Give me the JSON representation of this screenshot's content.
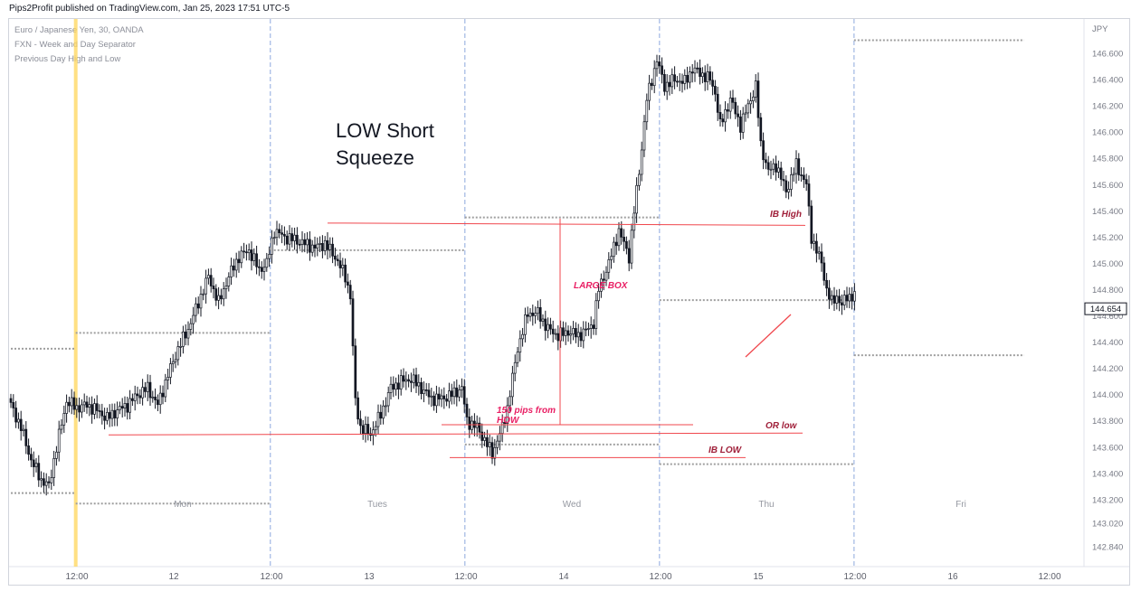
{
  "publisher": "Pips2Profit published on TradingView.com, Jan 25, 2023 17:51 UTC-5",
  "legend": [
    "Euro / Japanese Yen, 30, OANDA",
    "FXN - Week and Day Separator",
    "Previous Day High and Low"
  ],
  "colors": {
    "candle": "#131722",
    "separator": "#a8bde6",
    "prev_day_level": "#9e9e9e",
    "highlight": "#ffd65a",
    "annotation_line": "#f0474d",
    "annotation_text_dark": "#a0203a",
    "annotation_text_pink": "#e91e63",
    "axis_text": "#787b86"
  },
  "chart_data": {
    "type": "candlestick",
    "symbol": "Euro / Japanese Yen",
    "interval": "30",
    "source": "OANDA",
    "y_axis": {
      "unit_label": "JPY",
      "ticks": [
        "146.600",
        "146.400",
        "146.200",
        "146.000",
        "145.800",
        "145.600",
        "145.400",
        "145.200",
        "145.000",
        "144.800",
        "144.600",
        "144.400",
        "144.200",
        "144.000",
        "143.800",
        "143.600",
        "143.400",
        "143.200",
        "143.020",
        "142.840"
      ],
      "range": [
        142.7,
        146.85
      ],
      "last_price": "144.654"
    },
    "x_axis": {
      "ticks": [
        "12:00",
        "12",
        "12:00",
        "13",
        "12:00",
        "14",
        "12:00",
        "15",
        "12:00",
        "16",
        "12:00"
      ],
      "day_labels": [
        "Mon",
        "Tues",
        "Wed",
        "Thu",
        "Fri"
      ]
    },
    "candle_anchors": [
      [
        0,
        143.92
      ],
      [
        4,
        143.75
      ],
      [
        8,
        143.5
      ],
      [
        12,
        143.35
      ],
      [
        15,
        143.3
      ],
      [
        18,
        143.6
      ],
      [
        22,
        143.95
      ],
      [
        26,
        143.9
      ],
      [
        30,
        143.92
      ],
      [
        34,
        143.88
      ],
      [
        38,
        143.82
      ],
      [
        42,
        143.88
      ],
      [
        46,
        143.92
      ],
      [
        50,
        144.0
      ],
      [
        54,
        144.05
      ],
      [
        58,
        143.92
      ],
      [
        62,
        144.15
      ],
      [
        66,
        144.35
      ],
      [
        70,
        144.5
      ],
      [
        74,
        144.7
      ],
      [
        78,
        144.9
      ],
      [
        82,
        144.7
      ],
      [
        86,
        144.9
      ],
      [
        90,
        145.05
      ],
      [
        94,
        145.1
      ],
      [
        98,
        144.95
      ],
      [
        101,
        145.0
      ],
      [
        104,
        145.25
      ],
      [
        108,
        145.2
      ],
      [
        112,
        145.18
      ],
      [
        116,
        145.15
      ],
      [
        120,
        145.12
      ],
      [
        124,
        145.15
      ],
      [
        128,
        145.05
      ],
      [
        132,
        144.9
      ],
      [
        134,
        144.75
      ],
      [
        136,
        143.95
      ],
      [
        138,
        143.75
      ],
      [
        142,
        143.7
      ],
      [
        146,
        143.85
      ],
      [
        150,
        144.05
      ],
      [
        154,
        144.1
      ],
      [
        158,
        144.12
      ],
      [
        162,
        144.05
      ],
      [
        166,
        143.97
      ],
      [
        170,
        143.97
      ],
      [
        174,
        144.0
      ],
      [
        178,
        144.05
      ],
      [
        180,
        143.8
      ],
      [
        184,
        143.75
      ],
      [
        188,
        143.62
      ],
      [
        190,
        143.55
      ],
      [
        194,
        143.75
      ],
      [
        196,
        143.9
      ],
      [
        200,
        144.35
      ],
      [
        204,
        144.62
      ],
      [
        208,
        144.62
      ],
      [
        212,
        144.5
      ],
      [
        216,
        144.45
      ],
      [
        220,
        144.48
      ],
      [
        224,
        144.45
      ],
      [
        228,
        144.5
      ],
      [
        230,
        144.55
      ],
      [
        232,
        144.8
      ],
      [
        236,
        145.0
      ],
      [
        240,
        145.25
      ],
      [
        244,
        145.05
      ],
      [
        246,
        145.4
      ],
      [
        248,
        145.7
      ],
      [
        251,
        146.25
      ],
      [
        255,
        146.55
      ],
      [
        258,
        146.35
      ],
      [
        262,
        146.4
      ],
      [
        266,
        146.38
      ],
      [
        269,
        146.48
      ],
      [
        272,
        146.45
      ],
      [
        276,
        146.4
      ],
      [
        278,
        146.3
      ],
      [
        280,
        146.05
      ],
      [
        282,
        146.15
      ],
      [
        284,
        146.25
      ],
      [
        288,
        146.05
      ],
      [
        292,
        146.25
      ],
      [
        294,
        146.35
      ],
      [
        296,
        145.9
      ],
      [
        299,
        145.7
      ],
      [
        302,
        145.75
      ],
      [
        306,
        145.55
      ],
      [
        310,
        145.75
      ],
      [
        314,
        145.6
      ],
      [
        316,
        145.2
      ],
      [
        320,
        145.0
      ],
      [
        322,
        144.8
      ],
      [
        324,
        144.7
      ],
      [
        326,
        144.75
      ],
      [
        328,
        144.68
      ],
      [
        330,
        144.75
      ],
      [
        333,
        144.75
      ]
    ],
    "session_separators_at_candle": [
      0,
      25.6,
      102.4,
      179.2,
      256,
      332.8
    ],
    "previous_day_levels": [
      {
        "from_candle": 0,
        "to_candle": 25.6,
        "price": 143.25
      },
      {
        "from_candle": 0,
        "to_candle": 25.6,
        "price": 144.35
      },
      {
        "from_candle": 25.6,
        "to_candle": 102.4,
        "price": 143.17
      },
      {
        "from_candle": 25.6,
        "to_candle": 102.4,
        "price": 144.47
      },
      {
        "from_candle": 102.4,
        "to_candle": 179.2,
        "price": 145.1
      },
      {
        "from_candle": 179.2,
        "to_candle": 256,
        "price": 145.35
      },
      {
        "from_candle": 179.2,
        "to_candle": 256,
        "price": 143.62
      },
      {
        "from_candle": 256,
        "to_candle": 332.8,
        "price": 144.72
      },
      {
        "from_candle": 256,
        "to_candle": 332.8,
        "price": 143.47
      },
      {
        "from_candle": 332.8,
        "to_candle": 400,
        "price": 146.7
      },
      {
        "from_candle": 332.8,
        "to_candle": 400,
        "price": 144.3
      }
    ],
    "annotations": {
      "headline": [
        "LOW Short",
        "Squeeze"
      ],
      "ib_high": {
        "label": "IB High",
        "price": 145.3
      },
      "or_low": {
        "label": "OR low",
        "price": 143.7
      },
      "ib_low": {
        "label": "IB LOW",
        "price": 143.52
      },
      "box_level": {
        "price": 143.77
      },
      "large_box": {
        "label": "LARGE BOX"
      },
      "pips_note": [
        "150 pips from",
        "HOW"
      ]
    }
  }
}
